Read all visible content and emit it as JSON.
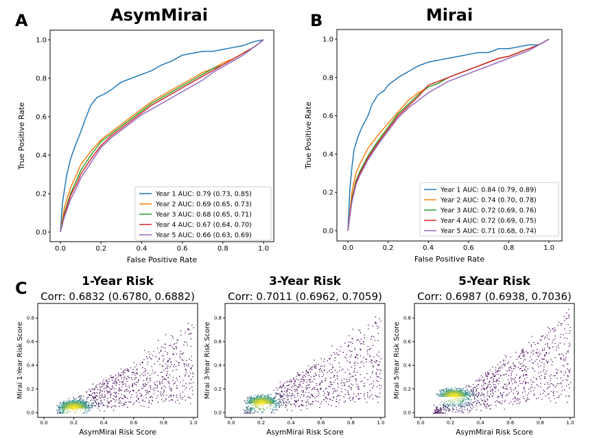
{
  "panels": {
    "a": {
      "letter": "A",
      "title": "AsymMirai"
    },
    "b": {
      "letter": "B",
      "title": "Mirai"
    },
    "c": {
      "letter": "C"
    }
  },
  "colors": {
    "year1": "#1f77b4",
    "year2": "#ff7f0e",
    "year3": "#2ca02c",
    "year4": "#d62728",
    "year5": "#9467bd",
    "density_low": "#440154",
    "density_mid": "#21918c",
    "density_high": "#fde725"
  },
  "chart_data": [
    {
      "id": "roc-asym",
      "type": "line",
      "title": "AsymMirai",
      "xlabel": "False Positive Rate",
      "ylabel": "True Positive Rate",
      "xlim": [
        0,
        1
      ],
      "ylim": [
        0,
        1
      ],
      "xticks": [
        "0.0",
        "0.2",
        "0.4",
        "0.6",
        "0.8",
        "1.0"
      ],
      "yticks": [
        "0.0",
        "0.2",
        "0.4",
        "0.6",
        "0.8",
        "1.0"
      ],
      "legend": "bottom-right",
      "series": [
        {
          "name": "Year 1 AUC: 0.79 (0.73, 0.85)",
          "color_key": "year1",
          "x": [
            0,
            0.01,
            0.02,
            0.03,
            0.05,
            0.07,
            0.1,
            0.12,
            0.15,
            0.18,
            0.22,
            0.25,
            0.3,
            0.35,
            0.4,
            0.45,
            0.5,
            0.55,
            0.6,
            0.65,
            0.7,
            0.75,
            0.8,
            0.85,
            0.9,
            0.95,
            1.0
          ],
          "y": [
            0,
            0.15,
            0.22,
            0.29,
            0.38,
            0.44,
            0.52,
            0.58,
            0.66,
            0.7,
            0.72,
            0.74,
            0.78,
            0.8,
            0.82,
            0.84,
            0.87,
            0.89,
            0.92,
            0.93,
            0.94,
            0.94,
            0.95,
            0.96,
            0.97,
            0.99,
            1.0
          ]
        },
        {
          "name": "Year 2 AUC: 0.69 (0.65, 0.73)",
          "color_key": "year2",
          "x": [
            0,
            0.02,
            0.05,
            0.08,
            0.1,
            0.15,
            0.2,
            0.25,
            0.3,
            0.35,
            0.4,
            0.45,
            0.5,
            0.55,
            0.6,
            0.65,
            0.7,
            0.75,
            0.8,
            0.85,
            0.9,
            0.95,
            1.0
          ],
          "y": [
            0,
            0.13,
            0.23,
            0.3,
            0.35,
            0.42,
            0.48,
            0.52,
            0.56,
            0.6,
            0.64,
            0.68,
            0.71,
            0.74,
            0.77,
            0.8,
            0.83,
            0.85,
            0.88,
            0.9,
            0.93,
            0.96,
            1.0
          ]
        },
        {
          "name": "Year 3 AUC: 0.68 (0.65, 0.71)",
          "color_key": "year3",
          "x": [
            0,
            0.02,
            0.05,
            0.08,
            0.1,
            0.15,
            0.2,
            0.25,
            0.3,
            0.35,
            0.4,
            0.45,
            0.5,
            0.55,
            0.6,
            0.65,
            0.7,
            0.75,
            0.8,
            0.85,
            0.9,
            0.95,
            1.0
          ],
          "y": [
            0,
            0.1,
            0.2,
            0.27,
            0.32,
            0.4,
            0.47,
            0.51,
            0.55,
            0.59,
            0.63,
            0.67,
            0.7,
            0.73,
            0.76,
            0.79,
            0.82,
            0.85,
            0.87,
            0.9,
            0.93,
            0.96,
            1.0
          ]
        },
        {
          "name": "Year 4 AUC: 0.67 (0.64, 0.70)",
          "color_key": "year4",
          "x": [
            0,
            0.02,
            0.05,
            0.08,
            0.1,
            0.15,
            0.2,
            0.25,
            0.3,
            0.35,
            0.4,
            0.45,
            0.5,
            0.55,
            0.6,
            0.65,
            0.7,
            0.75,
            0.8,
            0.85,
            0.9,
            0.95,
            1.0
          ],
          "y": [
            0,
            0.09,
            0.19,
            0.25,
            0.3,
            0.38,
            0.45,
            0.5,
            0.54,
            0.58,
            0.62,
            0.66,
            0.69,
            0.72,
            0.75,
            0.78,
            0.81,
            0.84,
            0.87,
            0.9,
            0.93,
            0.96,
            1.0
          ]
        },
        {
          "name": "Year 5 AUC: 0.66 (0.63, 0.69)",
          "color_key": "year5",
          "x": [
            0,
            0.02,
            0.05,
            0.08,
            0.1,
            0.15,
            0.2,
            0.25,
            0.3,
            0.35,
            0.4,
            0.45,
            0.5,
            0.55,
            0.6,
            0.65,
            0.7,
            0.75,
            0.8,
            0.85,
            0.9,
            0.95,
            1.0
          ],
          "y": [
            0,
            0.08,
            0.17,
            0.23,
            0.28,
            0.36,
            0.44,
            0.49,
            0.53,
            0.57,
            0.61,
            0.64,
            0.67,
            0.7,
            0.73,
            0.76,
            0.79,
            0.83,
            0.86,
            0.89,
            0.92,
            0.96,
            1.0
          ]
        }
      ]
    },
    {
      "id": "roc-mirai",
      "type": "line",
      "title": "Mirai",
      "xlabel": "False Positive Rate",
      "ylabel": "True Positive Rate",
      "xlim": [
        0,
        1
      ],
      "ylim": [
        0,
        1
      ],
      "xticks": [
        "0.0",
        "0.2",
        "0.4",
        "0.6",
        "0.8",
        "1.0"
      ],
      "yticks": [
        "0.0",
        "0.2",
        "0.4",
        "0.6",
        "0.8",
        "1.0"
      ],
      "legend": "bottom-right",
      "series": [
        {
          "name": "Year 1 AUC: 0.84 (0.79, 0.89)",
          "color_key": "year1",
          "x": [
            0,
            0.01,
            0.02,
            0.03,
            0.05,
            0.07,
            0.1,
            0.12,
            0.15,
            0.18,
            0.2,
            0.25,
            0.3,
            0.35,
            0.4,
            0.45,
            0.5,
            0.55,
            0.6,
            0.65,
            0.7,
            0.75,
            0.8,
            0.85,
            0.9,
            0.95,
            1.0
          ],
          "y": [
            0,
            0.22,
            0.33,
            0.42,
            0.49,
            0.54,
            0.6,
            0.66,
            0.71,
            0.73,
            0.76,
            0.8,
            0.83,
            0.86,
            0.88,
            0.89,
            0.9,
            0.91,
            0.92,
            0.93,
            0.93,
            0.95,
            0.95,
            0.96,
            0.97,
            0.97,
            1.0
          ]
        },
        {
          "name": "Year 2 AUC: 0.74 (0.70, 0.78)",
          "color_key": "year2",
          "x": [
            0,
            0.02,
            0.04,
            0.06,
            0.1,
            0.15,
            0.2,
            0.25,
            0.3,
            0.35,
            0.4,
            0.45,
            0.5,
            0.55,
            0.6,
            0.65,
            0.7,
            0.75,
            0.8,
            0.85,
            0.9,
            0.95,
            1.0
          ],
          "y": [
            0,
            0.2,
            0.3,
            0.35,
            0.43,
            0.5,
            0.56,
            0.62,
            0.68,
            0.72,
            0.75,
            0.77,
            0.8,
            0.82,
            0.84,
            0.86,
            0.88,
            0.9,
            0.91,
            0.93,
            0.95,
            0.97,
            1.0
          ]
        },
        {
          "name": "Year 3 AUC: 0.72 (0.69, 0.76)",
          "color_key": "year3",
          "x": [
            0,
            0.02,
            0.04,
            0.06,
            0.1,
            0.15,
            0.2,
            0.25,
            0.3,
            0.35,
            0.4,
            0.45,
            0.5,
            0.55,
            0.6,
            0.65,
            0.7,
            0.75,
            0.8,
            0.85,
            0.9,
            0.95,
            1.0
          ],
          "y": [
            0,
            0.17,
            0.26,
            0.31,
            0.39,
            0.47,
            0.54,
            0.61,
            0.66,
            0.71,
            0.75,
            0.77,
            0.8,
            0.82,
            0.84,
            0.86,
            0.88,
            0.9,
            0.91,
            0.93,
            0.95,
            0.97,
            1.0
          ]
        },
        {
          "name": "Year 4 AUC: 0.72 (0.69, 0.75)",
          "color_key": "year4",
          "x": [
            0,
            0.02,
            0.04,
            0.06,
            0.1,
            0.15,
            0.2,
            0.25,
            0.3,
            0.35,
            0.4,
            0.45,
            0.5,
            0.55,
            0.6,
            0.65,
            0.7,
            0.75,
            0.8,
            0.85,
            0.9,
            0.95,
            1.0
          ],
          "y": [
            0,
            0.16,
            0.25,
            0.3,
            0.38,
            0.46,
            0.53,
            0.6,
            0.65,
            0.7,
            0.76,
            0.78,
            0.8,
            0.82,
            0.84,
            0.86,
            0.88,
            0.9,
            0.91,
            0.93,
            0.95,
            0.97,
            1.0
          ]
        },
        {
          "name": "Year 5 AUC: 0.71 (0.68, 0.74)",
          "color_key": "year5",
          "x": [
            0,
            0.02,
            0.04,
            0.06,
            0.1,
            0.15,
            0.2,
            0.25,
            0.3,
            0.35,
            0.4,
            0.45,
            0.5,
            0.55,
            0.6,
            0.65,
            0.7,
            0.75,
            0.8,
            0.85,
            0.9,
            0.95,
            1.0
          ],
          "y": [
            0,
            0.15,
            0.24,
            0.29,
            0.37,
            0.45,
            0.52,
            0.59,
            0.64,
            0.68,
            0.72,
            0.75,
            0.78,
            0.8,
            0.82,
            0.84,
            0.86,
            0.88,
            0.9,
            0.92,
            0.94,
            0.97,
            1.0
          ]
        }
      ]
    },
    {
      "id": "scatter-1",
      "type": "scatter",
      "title": "1-Year Risk",
      "subtitle": "Corr: 0.6832 (0.6780, 0.6882)",
      "xlabel": "AsymMirai Risk Score",
      "ylabel": "Mirai 1-Year Risk Score",
      "xlim": [
        0,
        1.0
      ],
      "ylim": [
        0,
        0.9
      ],
      "xticks": [
        "0.0",
        "0.2",
        "0.4",
        "0.6",
        "0.8",
        "1.0"
      ],
      "yticks": [
        "0.0",
        "0.2",
        "0.4",
        "0.6",
        "0.8"
      ],
      "density_peak": [
        0.2,
        0.04
      ],
      "slope": 0.65
    },
    {
      "id": "scatter-3",
      "type": "scatter",
      "title": "3-Year Risk",
      "subtitle": "Corr: 0.7011 (0.6962, 0.7059)",
      "xlabel": "AsymMirai Risk Score",
      "ylabel": "Mirai 3-Year Risk Score",
      "xlim": [
        0,
        1.0
      ],
      "ylim": [
        0,
        0.9
      ],
      "xticks": [
        "0.0",
        "0.2",
        "0.4",
        "0.6",
        "0.8",
        "1.0"
      ],
      "yticks": [
        "0.0",
        "0.2",
        "0.4",
        "0.6",
        "0.8"
      ],
      "density_peak": [
        0.2,
        0.08
      ],
      "slope": 0.7
    },
    {
      "id": "scatter-5",
      "type": "scatter",
      "title": "5-Year Risk",
      "subtitle": "Corr: 0.6987 (0.6938, 0.7036)",
      "xlabel": "AsymMirai Risk Score",
      "ylabel": "Mirai 5-Year Risk Score",
      "xlim": [
        0,
        1.0
      ],
      "ylim": [
        0,
        0.9
      ],
      "xticks": [
        "0.0",
        "0.2",
        "0.4",
        "0.6",
        "0.8",
        "1.0"
      ],
      "yticks": [
        "0.0",
        "0.2",
        "0.4",
        "0.6",
        "0.8"
      ],
      "density_peak": [
        0.22,
        0.14
      ],
      "slope": 0.72
    }
  ]
}
